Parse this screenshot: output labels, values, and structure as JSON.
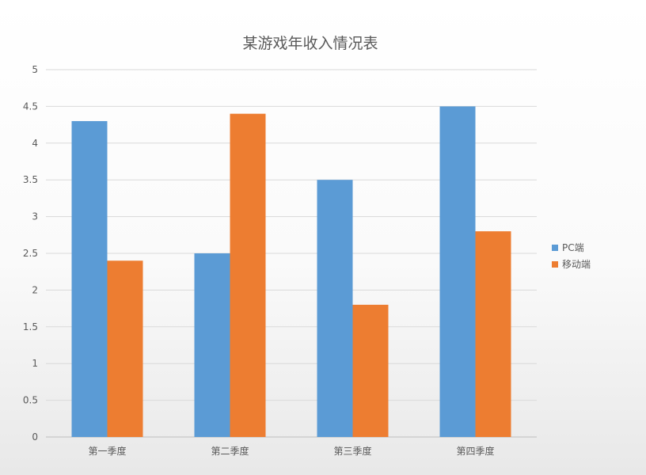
{
  "chart_data": {
    "type": "bar",
    "title": "某游戏年收入情况表",
    "categories": [
      "第一季度",
      "第二季度",
      "第三季度",
      "第四季度"
    ],
    "series": [
      {
        "name": "PC端",
        "color": "#5B9BD5",
        "values": [
          4.3,
          2.5,
          3.5,
          4.5
        ]
      },
      {
        "name": "移动端",
        "color": "#ED7D31",
        "values": [
          2.4,
          4.4,
          1.8,
          2.8
        ]
      }
    ],
    "ylim": [
      0,
      5
    ],
    "yticks": [
      "0",
      "0.5",
      "1",
      "1.5",
      "2",
      "2.5",
      "3",
      "3.5",
      "4",
      "4.5",
      "5"
    ],
    "grid": true,
    "legend_position": "right"
  }
}
